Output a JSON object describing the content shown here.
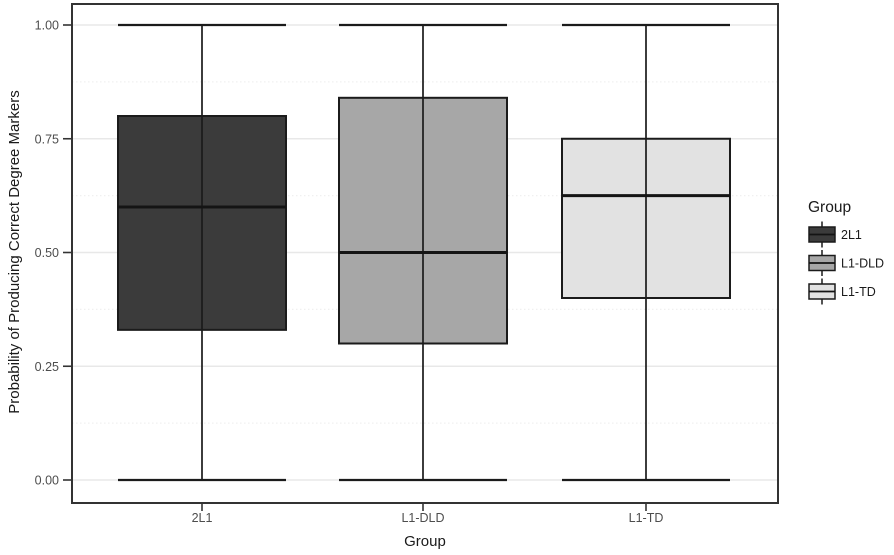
{
  "chart_data": {
    "type": "boxplot",
    "title": "",
    "xlabel": "Group",
    "ylabel": "Probability of Producing Correct Degree Markers",
    "ylim": [
      0,
      1
    ],
    "ytick_values": [
      1.0,
      0.75,
      0.5,
      0.25,
      0.0
    ],
    "ytick_labels": [
      "1.00",
      "0.75",
      "0.50",
      "0.25",
      "0.00"
    ],
    "minor_gridlines": [
      0.875,
      0.625,
      0.375,
      0.125
    ],
    "grid": true,
    "categories": [
      "2L1",
      "L1-DLD",
      "L1-TD"
    ],
    "series": [
      {
        "name": "2L1",
        "fill": "#3b3b3b",
        "whisker_low": 0.0,
        "q1": 0.33,
        "median": 0.6,
        "q3": 0.8,
        "whisker_high": 1.0
      },
      {
        "name": "L1-DLD",
        "fill": "#a7a7a7",
        "whisker_low": 0.0,
        "q1": 0.3,
        "median": 0.5,
        "q3": 0.84,
        "whisker_high": 1.0
      },
      {
        "name": "L1-TD",
        "fill": "#e2e2e2",
        "whisker_low": 0.0,
        "q1": 0.4,
        "median": 0.625,
        "q3": 0.75,
        "whisker_high": 1.0
      }
    ],
    "legend": {
      "title": "Group",
      "position": "right",
      "entries": [
        "2L1",
        "L1-DLD",
        "L1-TD"
      ]
    }
  },
  "colors": {
    "background": "#ffffff",
    "panel_background": "#ffffff",
    "panel_border": "#333333",
    "grid_major": "#e8e8e8",
    "grid_minor": "#f0f0f0",
    "box_stroke": "#1b1b1b",
    "median_stroke": "#141414",
    "whisker_stroke": "#1b1b1b",
    "tick_mark": "#333333",
    "tick_label_text": "#4d4d4d",
    "axis_title_text": "#1a1a1a",
    "legend_text": "#1a1a1a"
  }
}
